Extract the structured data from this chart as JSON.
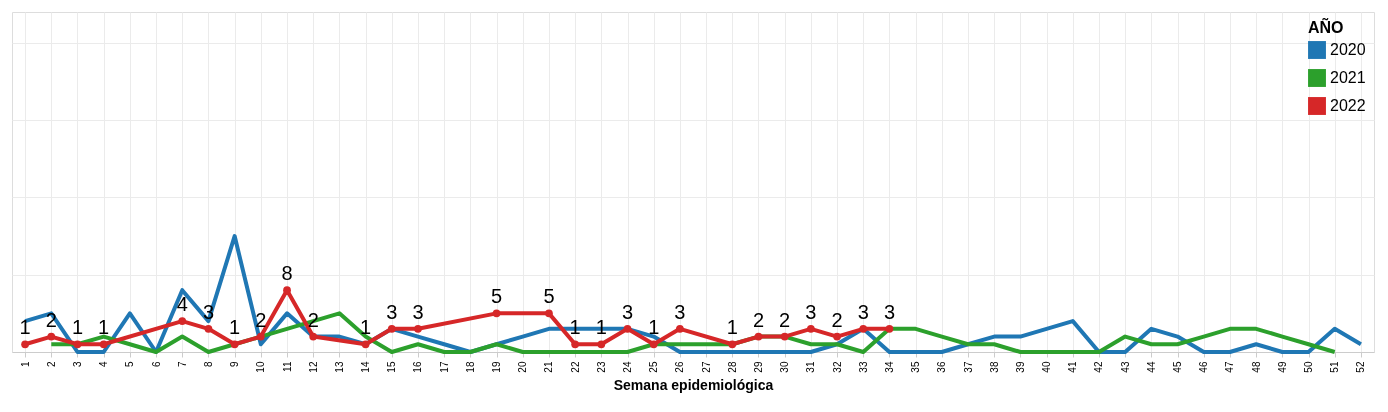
{
  "chart_data": {
    "type": "line",
    "xlabel": "Semana epidemiológica",
    "legend_title": "AÑO",
    "categories": [
      "1",
      "2",
      "3",
      "4",
      "5",
      "6",
      "7",
      "8",
      "9",
      "10",
      "11",
      "12",
      "13",
      "14",
      "15",
      "16",
      "17",
      "18",
      "19",
      "20",
      "21",
      "22",
      "23",
      "24",
      "25",
      "26",
      "27",
      "28",
      "29",
      "30",
      "31",
      "32",
      "33",
      "34",
      "35",
      "36",
      "37",
      "38",
      "39",
      "40",
      "41",
      "42",
      "43",
      "44",
      "45",
      "46",
      "47",
      "48",
      "49",
      "50",
      "51",
      "52"
    ],
    "ylim": [
      0,
      44
    ],
    "yticks": [
      {
        "value": 0,
        "label": null
      },
      {
        "value": 10,
        "label": null
      },
      {
        "value": 20,
        "label": null
      },
      {
        "value": 30,
        "label": null
      },
      {
        "value": 40,
        "label": null
      }
    ],
    "grid": true,
    "tick_labels": "x",
    "legend": "top right",
    "line_style": "solid",
    "series": [
      {
        "name": "2020",
        "color": "#1f77b4",
        "marker": "none",
        "values": [
          4,
          5,
          0,
          0,
          5,
          0,
          8,
          4,
          15,
          1,
          5,
          2,
          2,
          1,
          3,
          2,
          1,
          0,
          1,
          2,
          3,
          3,
          3,
          3,
          2,
          0,
          0,
          0,
          0,
          0,
          0,
          1,
          3,
          0,
          0,
          0,
          1,
          2,
          2,
          3,
          4,
          0,
          0,
          3,
          2,
          0,
          0,
          1,
          0,
          0,
          3,
          1
        ]
      },
      {
        "name": "2021",
        "color": "#2ca02c",
        "marker": "none",
        "values": [
          null,
          1,
          1,
          2,
          1,
          0,
          2,
          0,
          1,
          2,
          3,
          4,
          5,
          2,
          0,
          1,
          0,
          0,
          1,
          0,
          0,
          0,
          0,
          0,
          1,
          1,
          1,
          1,
          2,
          2,
          1,
          1,
          0,
          3,
          3,
          2,
          1,
          1,
          0,
          0,
          0,
          0,
          2,
          1,
          1,
          2,
          3,
          3,
          2,
          1,
          0,
          null
        ]
      },
      {
        "name": "2022",
        "color": "#d62728",
        "marker": "circle",
        "values": [
          1,
          2,
          1,
          1,
          null,
          null,
          4,
          3,
          1,
          2,
          8,
          2,
          null,
          1,
          3,
          3,
          null,
          null,
          5,
          null,
          5,
          1,
          1,
          3,
          1,
          3,
          null,
          1,
          2,
          2,
          3,
          2,
          3,
          3,
          null,
          null,
          null,
          null,
          null,
          null,
          null,
          null,
          null,
          null,
          null,
          null,
          null,
          null,
          null,
          null,
          null,
          null
        ],
        "value_labels": [
          "1",
          "2",
          "1",
          "1",
          null,
          null,
          "4",
          "3",
          "1",
          "2",
          "8",
          "2",
          null,
          "1",
          "3",
          "3",
          null,
          null,
          "5",
          null,
          "5",
          "1",
          "1",
          "3",
          "1",
          "3",
          null,
          "1",
          "2",
          "2",
          "3",
          "2",
          "3",
          "3",
          null,
          null,
          null,
          null,
          null,
          null,
          null,
          null,
          null,
          null,
          null,
          null,
          null,
          null,
          null,
          null,
          null,
          null
        ]
      }
    ]
  }
}
